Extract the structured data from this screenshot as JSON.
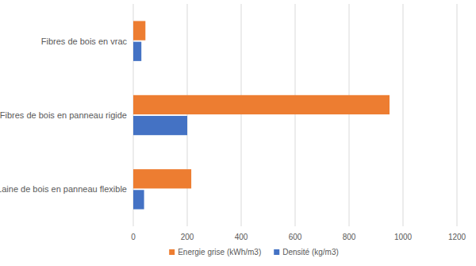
{
  "chart_data": {
    "type": "bar",
    "orientation": "horizontal",
    "categories": [
      "Fibres de bois en vrac",
      "Fibres de bois en panneau rigide",
      "Laine de bois en panneau flexible"
    ],
    "series": [
      {
        "name": "Energie grise (kWh/m3)",
        "color": "#ed7d31",
        "values": [
          45,
          950,
          215
        ]
      },
      {
        "name": "Densité (kg/m3)",
        "color": "#4472c4",
        "values": [
          30,
          200,
          40
        ]
      }
    ],
    "xlim": [
      0,
      1200
    ],
    "xticks": [
      0,
      200,
      400,
      600,
      800,
      1000,
      1200
    ],
    "grid": true,
    "legend": "bottom"
  }
}
